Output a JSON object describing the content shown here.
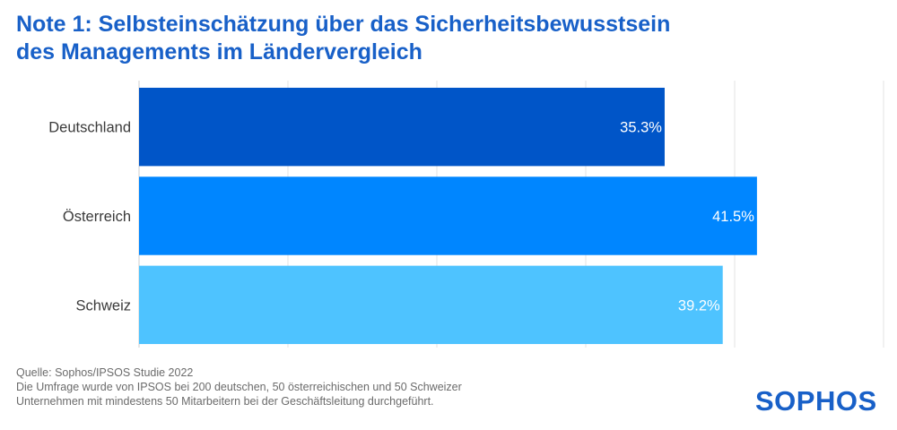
{
  "title_lines": [
    "Note 1: Selbsteinschätzung über das Sicherheitsbewusstsein",
    "des Managements im Ländervergleich"
  ],
  "chart_data": {
    "type": "bar",
    "orientation": "horizontal",
    "categories": [
      "Deutschland",
      "Österreich",
      "Schweiz"
    ],
    "values": [
      35.3,
      41.5,
      39.2
    ],
    "value_labels": [
      "35.3%",
      "41.5%",
      "39.2%"
    ],
    "colors": [
      "#0055c8",
      "#0086ff",
      "#4ec3ff"
    ],
    "xlim": [
      0,
      50
    ],
    "grid": true,
    "xlabel": "",
    "ylabel": ""
  },
  "footer": {
    "source": "Quelle: Sophos/IPSOS Studie 2022",
    "note_line1": "Die Umfrage wurde von IPSOS bei 200 deutschen, 50 österreichischen und 50 Schweizer",
    "note_line2": "Unternehmen mit mindestens 50 Mitarbeitern bei der Geschäftsleitung durchgeführt."
  },
  "logo_text": "SOPHOS"
}
